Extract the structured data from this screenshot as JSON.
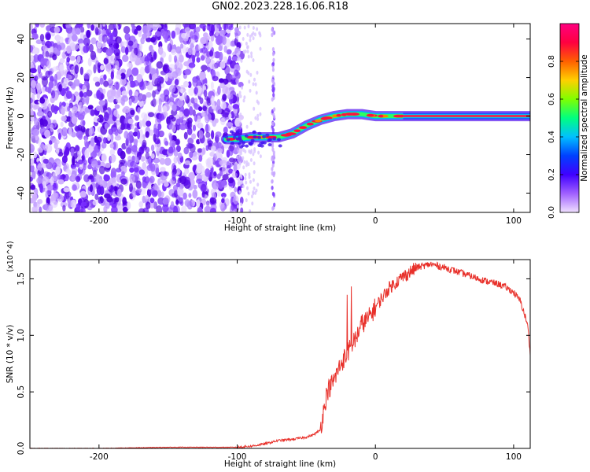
{
  "title": "GN02.2023.228.16.06.R18",
  "chart_data": [
    {
      "type": "heatmap",
      "title": "",
      "xlabel": "Height of straight line (km)",
      "ylabel": "Frequency (Hz)",
      "xlim": [
        -250,
        112
      ],
      "ylim": [
        -50,
        48
      ],
      "xticks": [
        -200,
        -100,
        0,
        100
      ],
      "yticks": [
        -40,
        -20,
        0,
        20,
        40
      ],
      "colorbar": {
        "label": "Normalized spectral amplitude",
        "range": [
          0.0,
          1.0
        ],
        "ticks": [
          "0.0",
          "0.2",
          "0.4",
          "0.6",
          "0.8"
        ],
        "colormap": [
          "#f0e0ff",
          "#a060ff",
          "#4000ff",
          "#0040ff",
          "#00c0ff",
          "#00ff80",
          "#80ff00",
          "#ffd000",
          "#ff6000",
          "#ff0040",
          "#ff0080"
        ]
      },
      "noise_region_x": [
        -250,
        -100
      ],
      "track": {
        "x": [
          -108,
          -100,
          -90,
          -80,
          -70,
          -60,
          -50,
          -40,
          -30,
          -20,
          -10,
          0,
          10,
          20,
          40,
          60,
          80,
          112
        ],
        "frequency_hz": [
          -12,
          -12,
          -11,
          -11,
          -11,
          -9,
          -5,
          -2,
          0,
          1,
          1,
          0,
          0,
          0,
          0,
          0,
          0,
          0
        ]
      }
    },
    {
      "type": "line",
      "title": "",
      "xlabel": "Height of straight line (km)",
      "ylabel": "SNR (10 * v/v)",
      "y_multiplier": "(x10^4)",
      "xlim": [
        -250,
        112
      ],
      "ylim": [
        0,
        1.67
      ],
      "xticks": [
        -200,
        -100,
        0,
        100
      ],
      "yticks": [
        "0.0",
        "0.5",
        "1.0",
        "1.5"
      ],
      "series": [
        {
          "color": "#e8302a",
          "x": [
            -250,
            -200,
            -150,
            -100,
            -90,
            -80,
            -70,
            -60,
            -50,
            -45,
            -40,
            -35,
            -30,
            -25,
            -20,
            -15,
            -10,
            -5,
            0,
            10,
            20,
            30,
            40,
            50,
            60,
            70,
            80,
            90,
            95,
            100,
            105,
            110,
            112
          ],
          "values": [
            0.0,
            0.0,
            0.01,
            0.01,
            0.02,
            0.04,
            0.07,
            0.08,
            0.1,
            0.12,
            0.16,
            0.5,
            0.6,
            0.75,
            0.85,
            0.95,
            1.1,
            1.15,
            1.25,
            1.42,
            1.52,
            1.6,
            1.63,
            1.6,
            1.56,
            1.52,
            1.48,
            1.45,
            1.42,
            1.38,
            1.3,
            1.1,
            0.85
          ]
        }
      ]
    }
  ]
}
